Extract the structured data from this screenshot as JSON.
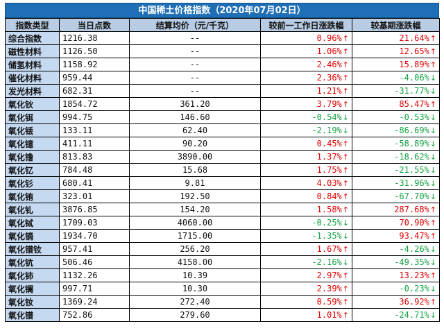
{
  "title": "中国稀土价格指数（2020年07月02日）",
  "headers": [
    "指数类型",
    "当日点数",
    "结算均价（元/千克）",
    "较前一工作日涨跌幅",
    "较基期涨跌幅"
  ],
  "colors": {
    "up": "#e00000",
    "down": "#10a040",
    "header_bg": "#b8cce4",
    "title_bg": "#1f6fb6",
    "name_bg": "#c5d9f1"
  },
  "rows": [
    {
      "name": "综合指数",
      "points": "1216.38",
      "price": "--",
      "day_change": "0.96%",
      "day_dir": "up",
      "base_change": "21.64%",
      "base_dir": "up"
    },
    {
      "name": "磁性材料",
      "points": "1126.50",
      "price": "--",
      "day_change": "1.06%",
      "day_dir": "up",
      "base_change": "12.65%",
      "base_dir": "up"
    },
    {
      "name": "储氢材料",
      "points": "1158.92",
      "price": "--",
      "day_change": "2.46%",
      "day_dir": "up",
      "base_change": "15.89%",
      "base_dir": "up"
    },
    {
      "name": "催化材料",
      "points": "959.44",
      "price": "--",
      "day_change": "2.36%",
      "day_dir": "up",
      "base_change": "-4.06%",
      "base_dir": "down"
    },
    {
      "name": "发光材料",
      "points": "682.31",
      "price": "--",
      "day_change": "1.21%",
      "day_dir": "up",
      "base_change": "-31.77%",
      "base_dir": "down"
    },
    {
      "name": "氧化钬",
      "points": "1854.72",
      "price": "361.20",
      "day_change": "3.79%",
      "day_dir": "up",
      "base_change": "85.47%",
      "base_dir": "up"
    },
    {
      "name": "氧化铒",
      "points": "994.75",
      "price": "146.60",
      "day_change": "-0.54%",
      "day_dir": "down",
      "base_change": "-0.53%",
      "base_dir": "down"
    },
    {
      "name": "氧化铥",
      "points": "133.11",
      "price": "62.40",
      "day_change": "-2.19%",
      "day_dir": "down",
      "base_change": "-86.69%",
      "base_dir": "down"
    },
    {
      "name": "氧化镱",
      "points": "411.11",
      "price": "90.20",
      "day_change": "0.45%",
      "day_dir": "up",
      "base_change": "-58.89%",
      "base_dir": "down"
    },
    {
      "name": "氧化镥",
      "points": "813.83",
      "price": "3890.00",
      "day_change": "1.37%",
      "day_dir": "up",
      "base_change": "-18.62%",
      "base_dir": "down"
    },
    {
      "name": "氧化钇",
      "points": "784.48",
      "price": "15.68",
      "day_change": "1.75%",
      "day_dir": "up",
      "base_change": "-21.55%",
      "base_dir": "down"
    },
    {
      "name": "氧化钐",
      "points": "680.41",
      "price": "9.81",
      "day_change": "4.03%",
      "day_dir": "up",
      "base_change": "-31.96%",
      "base_dir": "down"
    },
    {
      "name": "氧化铕",
      "points": "323.01",
      "price": "192.50",
      "day_change": "0.84%",
      "day_dir": "up",
      "base_change": "-67.70%",
      "base_dir": "down"
    },
    {
      "name": "氧化钆",
      "points": "3876.85",
      "price": "154.20",
      "day_change": "1.58%",
      "day_dir": "up",
      "base_change": "287.68%",
      "base_dir": "up"
    },
    {
      "name": "氧化铽",
      "points": "1709.03",
      "price": "4060.00",
      "day_change": "-0.25%",
      "day_dir": "down",
      "base_change": "70.90%",
      "base_dir": "up"
    },
    {
      "name": "氧化镝",
      "points": "1934.70",
      "price": "1715.00",
      "day_change": "-1.35%",
      "day_dir": "down",
      "base_change": "93.47%",
      "base_dir": "up"
    },
    {
      "name": "氧化镨钕",
      "points": "957.41",
      "price": "256.20",
      "day_change": "1.67%",
      "day_dir": "up",
      "base_change": "-4.26%",
      "base_dir": "down"
    },
    {
      "name": "氧化钪",
      "points": "506.46",
      "price": "4158.00",
      "day_change": "-2.16%",
      "day_dir": "down",
      "base_change": "-49.35%",
      "base_dir": "down"
    },
    {
      "name": "氧化铈",
      "points": "1132.26",
      "price": "10.39",
      "day_change": "2.97%",
      "day_dir": "up",
      "base_change": "13.23%",
      "base_dir": "up"
    },
    {
      "name": "氧化镧",
      "points": "997.71",
      "price": "10.30",
      "day_change": "2.39%",
      "day_dir": "up",
      "base_change": "-0.23%",
      "base_dir": "down"
    },
    {
      "name": "氧化钕",
      "points": "1369.24",
      "price": "272.40",
      "day_change": "0.59%",
      "day_dir": "up",
      "base_change": "36.92%",
      "base_dir": "up"
    },
    {
      "name": "氧化镨",
      "points": "752.86",
      "price": "279.60",
      "day_change": "1.01%",
      "day_dir": "up",
      "base_change": "-24.71%",
      "base_dir": "down"
    }
  ]
}
